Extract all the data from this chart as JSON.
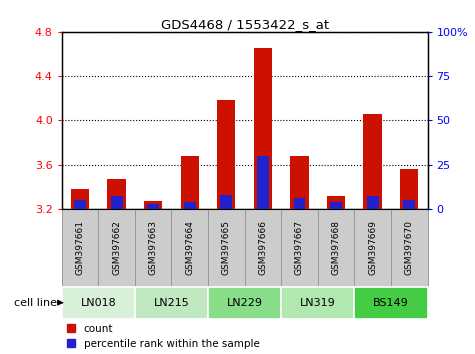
{
  "title": "GDS4468 / 1553422_s_at",
  "samples": [
    "GSM397661",
    "GSM397662",
    "GSM397663",
    "GSM397664",
    "GSM397665",
    "GSM397666",
    "GSM397667",
    "GSM397668",
    "GSM397669",
    "GSM397670"
  ],
  "count_values": [
    3.38,
    3.47,
    3.27,
    3.68,
    4.18,
    4.65,
    3.68,
    3.32,
    4.06,
    3.56
  ],
  "percentile_values": [
    5,
    7,
    3,
    4,
    8,
    30,
    6,
    4,
    7,
    5
  ],
  "cell_lines": [
    {
      "name": "LN018",
      "start": 0,
      "end": 2,
      "color": "#d8f0d8"
    },
    {
      "name": "LN215",
      "start": 2,
      "end": 4,
      "color": "#c0e8c0"
    },
    {
      "name": "LN229",
      "start": 4,
      "end": 6,
      "color": "#88dd88"
    },
    {
      "name": "LN319",
      "start": 6,
      "end": 8,
      "color": "#b0e8b0"
    },
    {
      "name": "BS149",
      "start": 8,
      "end": 10,
      "color": "#44cc44"
    }
  ],
  "ylim_left": [
    3.2,
    4.8
  ],
  "ylim_right": [
    0,
    100
  ],
  "yticks_left": [
    3.2,
    3.6,
    4.0,
    4.4,
    4.8
  ],
  "yticks_right": [
    0,
    25,
    50,
    75,
    100
  ],
  "bar_width": 0.5,
  "count_color": "#cc1100",
  "percentile_color": "#2222cc",
  "bar_bottom": 3.2,
  "legend_count": "count",
  "legend_pct": "percentile rank within the sample",
  "cell_line_label": "cell line",
  "sample_box_color": "#cccccc",
  "sample_box_edge": "#999999"
}
